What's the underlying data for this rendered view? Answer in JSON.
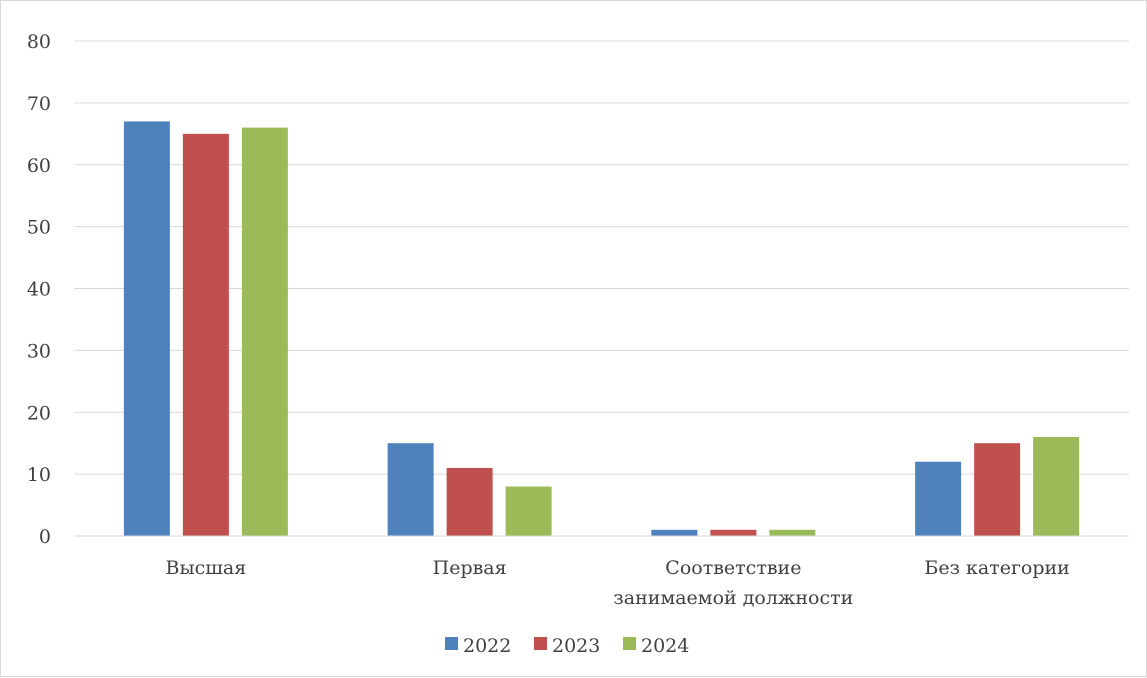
{
  "chart_data": {
    "type": "bar",
    "title": "",
    "xlabel": "",
    "ylabel": "",
    "ylim": [
      0,
      80
    ],
    "yticks": [
      0,
      10,
      20,
      30,
      40,
      50,
      60,
      70,
      80
    ],
    "grid": true,
    "legend_position": "bottom",
    "categories": [
      [
        "Высшая"
      ],
      [
        "Первая"
      ],
      [
        "Соответствие",
        "занимаемой должности"
      ],
      [
        "Без категории"
      ]
    ],
    "series": [
      {
        "name": "2022",
        "color": "#4f81bd",
        "values": [
          67,
          15,
          1,
          12
        ]
      },
      {
        "name": "2023",
        "color": "#c0504d",
        "values": [
          65,
          11,
          1,
          15
        ]
      },
      {
        "name": "2024",
        "color": "#9bbb59",
        "values": [
          66,
          8,
          1,
          16
        ]
      }
    ]
  }
}
